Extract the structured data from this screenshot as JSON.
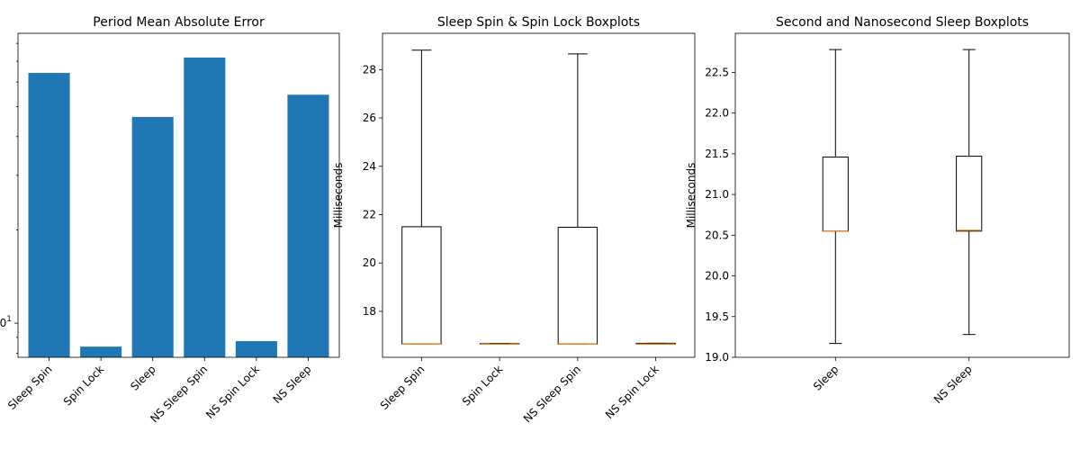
{
  "chart_data": [
    {
      "type": "bar",
      "title": "Period Mean Absolute Error",
      "yscale": "log",
      "ylim": [
        7.76,
        86.2
      ],
      "ytick_labels": [
        {
          "value": 10,
          "text": "10",
          "sup": "1"
        }
      ],
      "categories": [
        "Sleep Spin",
        "Spin Lock",
        "Sleep",
        "NS Sleep Spin",
        "NS Spin Lock",
        "NS Sleep"
      ],
      "values": [
        64.2,
        8.4,
        46.3,
        72.0,
        8.75,
        54.6
      ],
      "color": "#1f77b4"
    },
    {
      "type": "box",
      "title": "Sleep Spin & Spin Lock Boxplots",
      "ylabel": "Milliseconds",
      "ylim": [
        16.1,
        29.5
      ],
      "yticks": [
        18,
        20,
        22,
        24,
        26,
        28
      ],
      "categories": [
        "Sleep Spin",
        "Spin Lock",
        "NS Sleep Spin",
        "NS Spin Lock"
      ],
      "boxes": [
        {
          "whislo": 16.65,
          "q1": 16.65,
          "med": 16.65,
          "q3": 21.5,
          "whishi": 28.8
        },
        {
          "whislo": 16.65,
          "q1": 16.65,
          "med": 16.65,
          "q3": 16.67,
          "whishi": 16.67
        },
        {
          "whislo": 16.65,
          "q1": 16.65,
          "med": 16.65,
          "q3": 21.48,
          "whishi": 28.65
        },
        {
          "whislo": 16.65,
          "q1": 16.65,
          "med": 16.65,
          "q3": 16.68,
          "whishi": 16.68
        }
      ]
    },
    {
      "type": "box",
      "title": "Second and Nanosecond Sleep Boxplots",
      "ylabel": "Milliseconds",
      "ylim": [
        19.0,
        22.98
      ],
      "yticks": [
        19.0,
        19.5,
        20.0,
        20.5,
        21.0,
        21.5,
        22.0,
        22.5
      ],
      "ytick_labels": [
        "19.0",
        "19.5",
        "20.0",
        "20.5",
        "21.0",
        "21.5",
        "22.0",
        "22.5"
      ],
      "categories": [
        "Sleep",
        "NS Sleep"
      ],
      "boxes": [
        {
          "whislo": 19.17,
          "q1": 20.55,
          "med": 20.55,
          "q3": 21.46,
          "whishi": 22.78
        },
        {
          "whislo": 19.28,
          "q1": 20.55,
          "med": 20.56,
          "q3": 21.47,
          "whishi": 22.78
        }
      ]
    }
  ],
  "style": {
    "median_color": "#ff7f0e"
  }
}
